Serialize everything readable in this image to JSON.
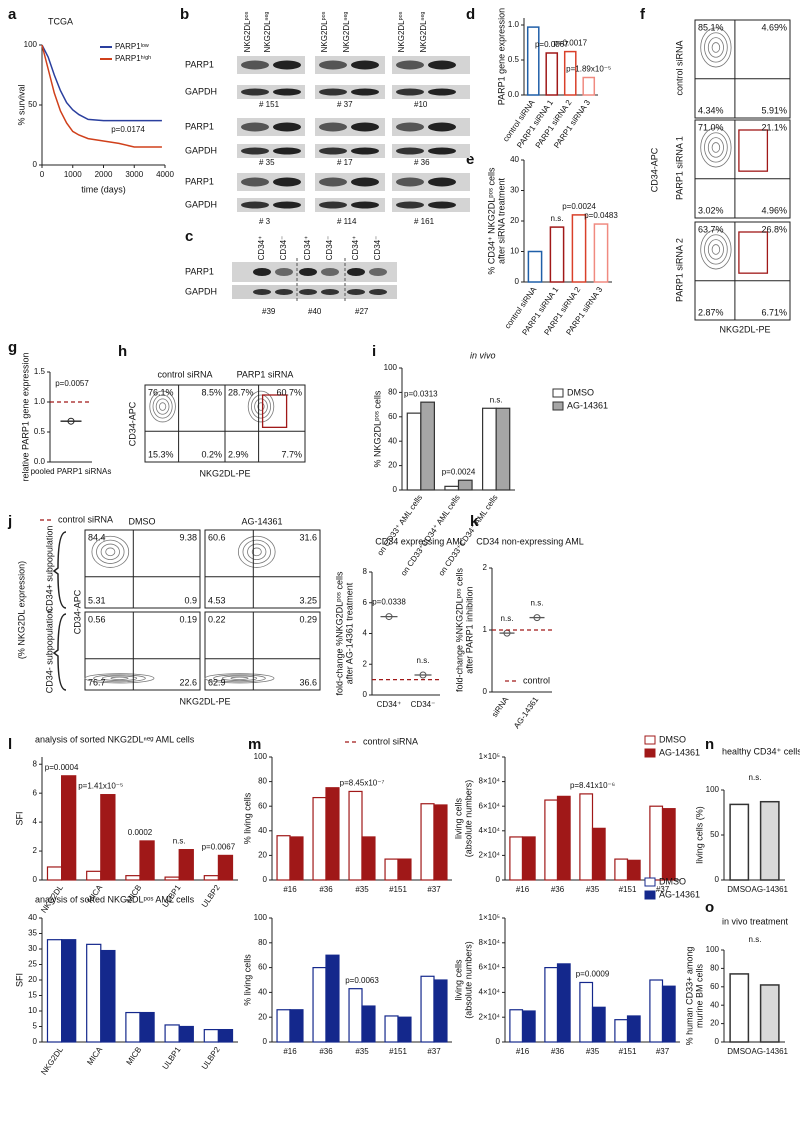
{
  "panel_labels": [
    "a",
    "b",
    "c",
    "d",
    "e",
    "f",
    "g",
    "h",
    "i",
    "j",
    "k",
    "l",
    "m",
    "n",
    "o"
  ],
  "blot_b": {
    "lane_headers": [
      "NKG2DLᵖᵒˢ",
      "NKG2DLⁿᵉᵍ",
      "NKG2DLᵖᵒˢ",
      "NKG2DLⁿᵉᵍ",
      "NKG2DLᵖᵒˢ",
      "NKG2DLⁿᵉᵍ"
    ],
    "rows": [
      "PARP1",
      "GAPDH",
      "PARP1",
      "GAPDH",
      "PARP1",
      "GAPDH"
    ],
    "samples": [
      "# 151",
      "# 37",
      "#10",
      "# 35",
      "# 17",
      "# 36",
      "# 3",
      "# 114",
      "# 161"
    ]
  },
  "blot_c": {
    "lane_headers": [
      "CD34⁺",
      "CD34⁻",
      "CD34⁺",
      "CD34⁻",
      "CD34⁺",
      "CD34⁻"
    ],
    "rows": [
      "PARP1",
      "GAPDH"
    ],
    "samples": [
      "#39",
      "#40",
      "#27"
    ]
  },
  "flow_f": {
    "y_label": "CD34-APC",
    "x_label": "NKG2DL-PE",
    "plots": [
      {
        "label": "control siRNA",
        "quadrants": [
          "85.1%",
          "4.69%",
          "4.34%",
          "5.91%"
        ]
      },
      {
        "label": "PARP1 siRNA 1",
        "quadrants": [
          "71.0%",
          "21.1%",
          "3.02%",
          "4.96%"
        ]
      },
      {
        "label": "PARP1 siRNA 2",
        "quadrants": [
          "63.7%",
          "26.8%",
          "2.87%",
          "6.71%"
        ]
      }
    ]
  },
  "flow_h": {
    "y_label": "CD34-APC",
    "x_label": "NKG2DL-PE",
    "plots": [
      {
        "label": "control siRNA",
        "quadrants": [
          "76.1%",
          "8.5%",
          "15.3%",
          "0.2%"
        ]
      },
      {
        "label": "PARP1 siRNA",
        "quadrants": [
          "28.7%",
          "60.7%",
          "2.9%",
          "7.7%"
        ]
      }
    ]
  },
  "flow_j": {
    "side_label": "(% NKG2DL expression)",
    "row_labels": [
      "CD34+ subpopulation",
      "CD34- subpopulation"
    ],
    "column_labels": [
      "DMSO",
      "AG-14361"
    ],
    "y_label": "CD34-APC",
    "x_label": "NKG2DL-PE",
    "quadrants": [
      [
        [
          84.4,
          9.38,
          5.31,
          0.9
        ],
        [
          60.6,
          31.6,
          4.53,
          3.25
        ]
      ],
      [
        [
          0.56,
          0.19,
          76.7,
          22.6
        ],
        [
          0.22,
          0.29,
          62.9,
          36.6
        ]
      ]
    ]
  },
  "chart_data": [
    {
      "type": "line",
      "title": "TCGA",
      "xlabel": "time (days)",
      "ylabel": [
        "% survival"
      ],
      "x": [
        0,
        200,
        400,
        600,
        800,
        1000,
        1200,
        1500,
        2000,
        2500,
        3000,
        3500,
        3900
      ],
      "series": [
        {
          "name": "PARP1ˡᵒʷ",
          "color": "#2a3f9e",
          "values": [
            100,
            90,
            75,
            62,
            52,
            46,
            42,
            38,
            37,
            37,
            37,
            37,
            37
          ]
        },
        {
          "name": "PARP1ʰⁱᵍʰ",
          "color": "#d0401b",
          "values": [
            100,
            80,
            60,
            45,
            35,
            28,
            25,
            22,
            20,
            18,
            15,
            15,
            15
          ]
        }
      ],
      "xlim": [
        0,
        4000
      ],
      "xticks": [
        0,
        1000,
        2000,
        3000,
        4000
      ],
      "ylim": [
        0,
        100
      ],
      "yticks": [
        0,
        50,
        100
      ],
      "annotation": "p=0.0174"
    },
    {
      "type": "bar",
      "ylabel": [
        "PARP1 gene expression"
      ],
      "categories": [
        "control siRNA",
        "PARP1 siRNA 1",
        "PARP1 siRNA 2",
        "PARP1 siRNA 3"
      ],
      "values": [
        0.97,
        0.6,
        0.62,
        0.25
      ],
      "colors": [
        "#1f5fa8",
        "#a01818",
        "#d9402a",
        "#f08a80"
      ],
      "fills": [
        "#ffffff",
        "#ffffff",
        "#ffffff",
        "#ffffff"
      ],
      "ylim": [
        0,
        1.1
      ],
      "yticks": [
        {
          "value": 0,
          "label": "0.0"
        },
        {
          "value": 0.5,
          "label": "0.5"
        },
        {
          "value": 1,
          "label": "1.0"
        }
      ],
      "annotations": [
        null,
        "p=0.0067",
        "p=0.0017",
        "p=1.89x10⁻⁵"
      ]
    },
    {
      "type": "bar",
      "ylabel": [
        "% CD34⁺ NKG2DLᵖᵒˢ cells",
        "after siRNA treatment"
      ],
      "categories": [
        "control siRNA",
        "PARP1 siRNA 1",
        "PARP1 siRNA 2",
        "PARP1 siRNA 3"
      ],
      "values": [
        10,
        18,
        22,
        19
      ],
      "colors": [
        "#1f5fa8",
        "#a01818",
        "#d9402a",
        "#f08a80"
      ],
      "fills": [
        "#ffffff",
        "#ffffff",
        "#ffffff",
        "#ffffff"
      ],
      "ylim": [
        0,
        40
      ],
      "yticks": [
        0,
        10,
        20,
        30,
        40
      ],
      "annotations": [
        null,
        "n.s.",
        "p=0.0024",
        "p=0.0483"
      ]
    },
    {
      "type": "dot",
      "ylabel": [
        "relative PARP1 gene expression"
      ],
      "categories": [
        "pooled PARP1 siRNAs"
      ],
      "values": [
        0.68
      ],
      "color": "#222222",
      "ylim": [
        0,
        1.5
      ],
      "yticks": [
        {
          "value": 0,
          "label": "0.0"
        },
        {
          "value": 0.5,
          "label": "0.5"
        },
        {
          "value": 1,
          "label": "1.0"
        },
        {
          "value": 1.5,
          "label": "1.5"
        }
      ],
      "reference": {
        "value": 1,
        "label": "control siRNA",
        "color": "#a01818"
      },
      "annotation": "p=0.0057"
    },
    {
      "type": "bar",
      "subtitle": "in vivo",
      "ylabel": [
        "% NKG2DLᵖᵒˢ cells"
      ],
      "categories": [
        "on CD33⁺ AML cells",
        "on CD33⁺CD34⁺ AML cells",
        "on CD33⁺CD34⁻ AML cells"
      ],
      "series": [
        {
          "name": "DMSO",
          "color": "#333333",
          "fill": "#ffffff",
          "values": [
            63,
            3,
            67
          ]
        },
        {
          "name": "AG-14361",
          "color": "#333333",
          "fill": "#a6a6a6",
          "values": [
            72,
            8,
            67
          ]
        }
      ],
      "ylim": [
        0,
        100
      ],
      "yticks": [
        0,
        20,
        40,
        60,
        80,
        100
      ],
      "annotations": [
        "p=0.0313",
        "p=0.0024",
        "n.s."
      ]
    },
    {
      "type": "dot",
      "title": "CD34 expressing AML",
      "ylabel": [
        "fold-change %NKG2DLᵖᵒˢ cells",
        "after AG-14361 treatment"
      ],
      "categories": [
        "CD34⁺",
        "CD34⁻"
      ],
      "values": [
        5.1,
        1.3
      ],
      "color": "#555555",
      "ylim": [
        0,
        8
      ],
      "yticks": [
        0,
        2,
        4,
        6,
        8
      ],
      "reference": {
        "value": 1,
        "label": "control siRNA",
        "color": "#a01818"
      },
      "annotations": [
        "p=0.0338",
        "n.s."
      ]
    },
    {
      "type": "dot",
      "title": "CD34 non-expressing AML",
      "ylabel": [
        "fold-change %NKG2DLᵖᵒˢ cells",
        "after PARP1 inhibition"
      ],
      "categories": [
        "siRNA",
        "AG-14361"
      ],
      "values": [
        0.95,
        1.2
      ],
      "color": "#555555",
      "ylim": [
        0,
        2
      ],
      "yticks": [
        0,
        1,
        2
      ],
      "reference": {
        "value": 1,
        "label": "control",
        "color": "#a01818"
      },
      "annotations": [
        "n.s.",
        "n.s."
      ]
    },
    {
      "type": "bar",
      "title": "analysis of sorted NKG2DLⁿᵉᵍ AML cells",
      "ylabel": [
        "SFI"
      ],
      "categories": [
        "NKG2DL",
        "MICA",
        "MICB",
        "ULBP1",
        "ULBP2"
      ],
      "series": [
        {
          "color": "#a01818",
          "fill": "#ffffff",
          "values": [
            0.9,
            0.6,
            0.3,
            0.2,
            0.3
          ]
        },
        {
          "color": "#a01818",
          "fill": "#a01818",
          "values": [
            7.2,
            5.9,
            2.7,
            2.1,
            1.7
          ]
        }
      ],
      "ylim": [
        0,
        8.5
      ],
      "yticks": [
        0,
        2,
        4,
        6,
        8
      ],
      "annotations": [
        "p=0.0004",
        "p=1.41x10⁻⁵",
        "0.0002",
        "n.s.",
        "p=0.0067"
      ]
    },
    {
      "type": "bar",
      "ylabel": [
        "% living cells"
      ],
      "categories": [
        "#16",
        "#36",
        "#35",
        "#151",
        "#37"
      ],
      "series": [
        {
          "color": "#a01818",
          "fill": "#ffffff",
          "values": [
            36,
            67,
            72,
            17,
            62
          ]
        },
        {
          "color": "#a01818",
          "fill": "#a01818",
          "values": [
            35,
            75,
            35,
            17,
            61
          ]
        }
      ],
      "ylim": [
        0,
        100
      ],
      "yticks": [
        0,
        20,
        40,
        60,
        80,
        100
      ],
      "annotations": [
        null,
        null,
        "p=8.45x10⁻⁷",
        null,
        null
      ]
    },
    {
      "type": "bar",
      "ylabel": [
        "living cells",
        "(absolute numbers)"
      ],
      "categories": [
        "#16",
        "#36",
        "#35",
        "#151",
        "#37"
      ],
      "series": [
        {
          "name": "DMSO",
          "color": "#a01818",
          "fill": "#ffffff",
          "values": [
            35000,
            65000,
            70000,
            17000,
            60000
          ]
        },
        {
          "name": "AG-14361",
          "color": "#a01818",
          "fill": "#a01818",
          "values": [
            35000,
            68000,
            42000,
            16000,
            58000
          ]
        }
      ],
      "ylim": [
        0,
        100000
      ],
      "yticks": [
        0,
        {
          "value": 20000,
          "label": "2×10⁴"
        },
        {
          "value": 40000,
          "label": "4×10⁴"
        },
        {
          "value": 60000,
          "label": "6×10⁴"
        },
        {
          "value": 80000,
          "label": "8×10⁴"
        },
        {
          "value": 100000,
          "label": "1×10⁵"
        }
      ],
      "annotations": [
        null,
        null,
        "p=8.41x10⁻⁶",
        null,
        null
      ]
    },
    {
      "type": "bar",
      "title": "healthy CD34⁺ cells",
      "ylabel": [
        "living cells (%)"
      ],
      "categories": [
        "DMSO",
        "AG-14361"
      ],
      "values": [
        84,
        87
      ],
      "colors": [
        "#333333",
        "#333333"
      ],
      "fills": [
        "#ffffff",
        "#d9d9d9"
      ],
      "ylim": [
        0,
        100
      ],
      "yticks": [
        0,
        50,
        100
      ],
      "annotation": "n.s."
    },
    {
      "type": "bar",
      "title": "analysis of sorted NKG2DLᵖᵒˢ AML cells",
      "ylabel": [
        "SFI"
      ],
      "categories": [
        "NKG2DL",
        "MICA",
        "MICB",
        "ULBP1",
        "ULBP2"
      ],
      "series": [
        {
          "color": "#14288c",
          "fill": "#ffffff",
          "values": [
            33,
            31.5,
            9.5,
            5.5,
            4
          ]
        },
        {
          "color": "#14288c",
          "fill": "#14288c",
          "values": [
            33,
            29.5,
            9.5,
            5,
            4
          ]
        }
      ],
      "ylim": [
        0,
        40
      ],
      "yticks": [
        0,
        5,
        10,
        15,
        20,
        25,
        30,
        35,
        40
      ]
    },
    {
      "type": "bar",
      "ylabel": [
        "% living cells"
      ],
      "categories": [
        "#16",
        "#36",
        "#35",
        "#151",
        "#37"
      ],
      "series": [
        {
          "color": "#14288c",
          "fill": "#ffffff",
          "values": [
            26,
            60,
            43,
            21,
            53
          ]
        },
        {
          "color": "#14288c",
          "fill": "#14288c",
          "values": [
            26,
            70,
            29,
            20,
            50
          ]
        }
      ],
      "ylim": [
        0,
        100
      ],
      "yticks": [
        0,
        20,
        40,
        60,
        80,
        100
      ],
      "annotations": [
        null,
        null,
        "p=0.0063",
        null,
        null
      ]
    },
    {
      "type": "bar",
      "ylabel": [
        "living cells",
        "(absolute numbers)"
      ],
      "categories": [
        "#16",
        "#36",
        "#35",
        "#151",
        "#37"
      ],
      "series": [
        {
          "name": "DMSO",
          "color": "#14288c",
          "fill": "#ffffff",
          "values": [
            26000,
            60000,
            48000,
            18000,
            50000
          ]
        },
        {
          "name": "AG-14361",
          "color": "#14288c",
          "fill": "#14288c",
          "values": [
            25000,
            63000,
            28000,
            21000,
            45000
          ]
        }
      ],
      "ylim": [
        0,
        100000
      ],
      "yticks": [
        0,
        {
          "value": 20000,
          "label": "2×10⁴"
        },
        {
          "value": 40000,
          "label": "4×10⁴"
        },
        {
          "value": 60000,
          "label": "6×10⁴"
        },
        {
          "value": 80000,
          "label": "8×10⁴"
        },
        {
          "value": 100000,
          "label": "1×10⁵"
        }
      ],
      "annotations": [
        null,
        null,
        "p=0.0009",
        null,
        null
      ]
    },
    {
      "type": "bar",
      "title": "in vivo treatment",
      "ylabel": [
        "% human CD33+ among",
        "murine BM cells"
      ],
      "categories": [
        "DMSO",
        "AG-14361"
      ],
      "values": [
        74,
        62
      ],
      "colors": [
        "#333333",
        "#333333"
      ],
      "fills": [
        "#ffffff",
        "#d9d9d9"
      ],
      "ylim": [
        0,
        100
      ],
      "yticks": [
        0,
        20,
        40,
        60,
        80,
        100
      ],
      "annotation": "n.s."
    }
  ]
}
